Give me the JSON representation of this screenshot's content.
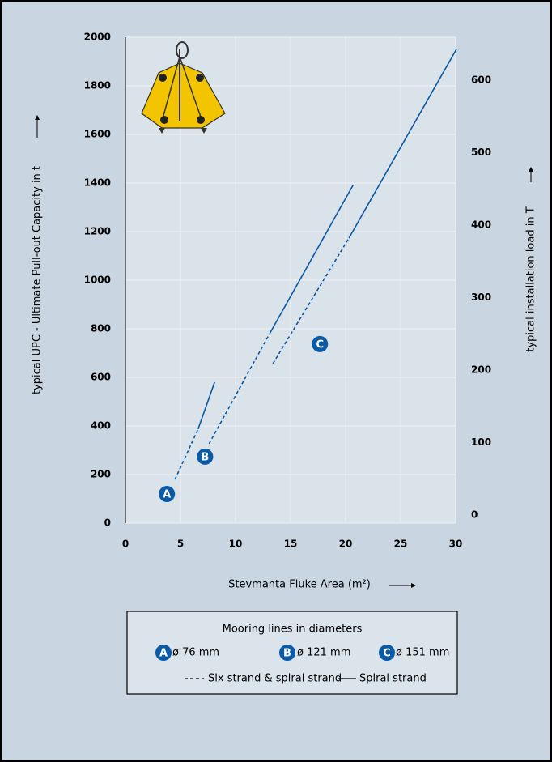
{
  "chart_data": {
    "type": "line",
    "xlabel": "Stevmanta Fluke Area (m²)",
    "ylabel": "typical UPC - Ultimate Pull-out Capacity in t",
    "y2label": "typical installation load in T",
    "xlim": [
      0,
      30
    ],
    "xticks": [
      0,
      5,
      10,
      15,
      20,
      25,
      30
    ],
    "ylim": [
      0,
      2000
    ],
    "yticks": [
      0,
      200,
      400,
      600,
      800,
      1000,
      1200,
      1400,
      1600,
      1800,
      2000
    ],
    "y2lim": [
      -11,
      659
    ],
    "y2ticks": [
      0,
      100,
      200,
      300,
      400,
      500,
      600
    ],
    "grid": true,
    "legend_title": "Mooring lines in diameters",
    "line_styles": {
      "dashed": "Six strand & spiral strand",
      "solid": "Spiral strand"
    },
    "series": [
      {
        "name": "A",
        "label": "ø 76 mm",
        "color": "#0a5aa5",
        "dashed": {
          "x": [
            4.5,
            6.6
          ],
          "values": [
            180,
            387
          ]
        },
        "solid": {
          "x": [
            6.6,
            8.1
          ],
          "values": [
            387,
            580
          ]
        }
      },
      {
        "name": "B",
        "label": "ø 121 mm",
        "color": "#0a5aa5",
        "dashed": {
          "x": [
            7.6,
            13.1
          ],
          "values": [
            327,
            780
          ]
        },
        "solid": {
          "x": [
            13.1,
            20.7
          ],
          "values": [
            780,
            1393
          ]
        }
      },
      {
        "name": "C",
        "label": "ø 151 mm",
        "color": "#0a5aa5",
        "dashed": {
          "x": [
            13.4,
            20.3
          ],
          "values": [
            657,
            1173
          ]
        },
        "solid": {
          "x": [
            20.3,
            30.1
          ],
          "values": [
            1173,
            1953
          ]
        }
      }
    ]
  }
}
